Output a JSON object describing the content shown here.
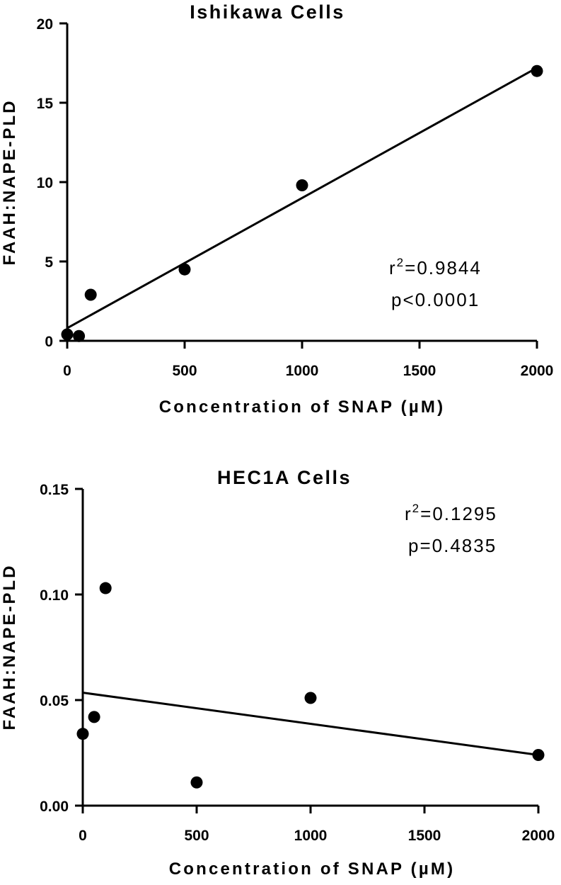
{
  "chart_data": [
    {
      "type": "scatter",
      "title": "Ishikawa Cells",
      "xlabel": "Concentration of SNAP (µM)",
      "ylabel": "FAAH:NAPE-PLD",
      "xlim": [
        0,
        2000
      ],
      "ylim": [
        0,
        20
      ],
      "xticks": [
        0,
        500,
        1000,
        1500,
        2000
      ],
      "yticks": [
        0,
        5,
        10,
        15,
        20
      ],
      "xtick_labels": [
        "0",
        "500",
        "1000",
        "1500",
        "2000"
      ],
      "ytick_labels": [
        "0",
        "5",
        "10",
        "15",
        "20"
      ],
      "grid": false,
      "points": [
        {
          "x": 0,
          "y": 0.4
        },
        {
          "x": 50,
          "y": 0.3
        },
        {
          "x": 100,
          "y": 2.9
        },
        {
          "x": 500,
          "y": 4.5
        },
        {
          "x": 1000,
          "y": 9.8
        },
        {
          "x": 2000,
          "y": 17.0
        }
      ],
      "fit_line": {
        "x": [
          0,
          2000
        ],
        "y": [
          0.8,
          17.2
        ]
      },
      "annotations": {
        "r2_prefix": "r",
        "r2_sup": "2",
        "r2_value": "=0.9844",
        "p": "p<0.0001"
      }
    },
    {
      "type": "scatter",
      "title": "HEC1A Cells",
      "xlabel": "Concentration of SNAP (µM)",
      "ylabel": "FAAH:NAPE-PLD",
      "xlim": [
        0,
        2000
      ],
      "ylim": [
        0,
        0.15
      ],
      "xticks": [
        0,
        500,
        1000,
        1500,
        2000
      ],
      "yticks": [
        0,
        0.05,
        0.1,
        0.15
      ],
      "xtick_labels": [
        "0",
        "500",
        "1000",
        "1500",
        "2000"
      ],
      "ytick_labels": [
        "0.00",
        "0.05",
        "0.10",
        "0.15"
      ],
      "grid": false,
      "points": [
        {
          "x": 0,
          "y": 0.034
        },
        {
          "x": 50,
          "y": 0.042
        },
        {
          "x": 100,
          "y": 0.103
        },
        {
          "x": 500,
          "y": 0.011
        },
        {
          "x": 1000,
          "y": 0.051
        },
        {
          "x": 2000,
          "y": 0.024
        }
      ],
      "fit_line": {
        "x": [
          0,
          2000
        ],
        "y": [
          0.0535,
          0.024
        ]
      },
      "annotations": {
        "r2_prefix": "r",
        "r2_sup": "2",
        "r2_value": "=0.1295",
        "p": "p=0.4835"
      }
    }
  ]
}
